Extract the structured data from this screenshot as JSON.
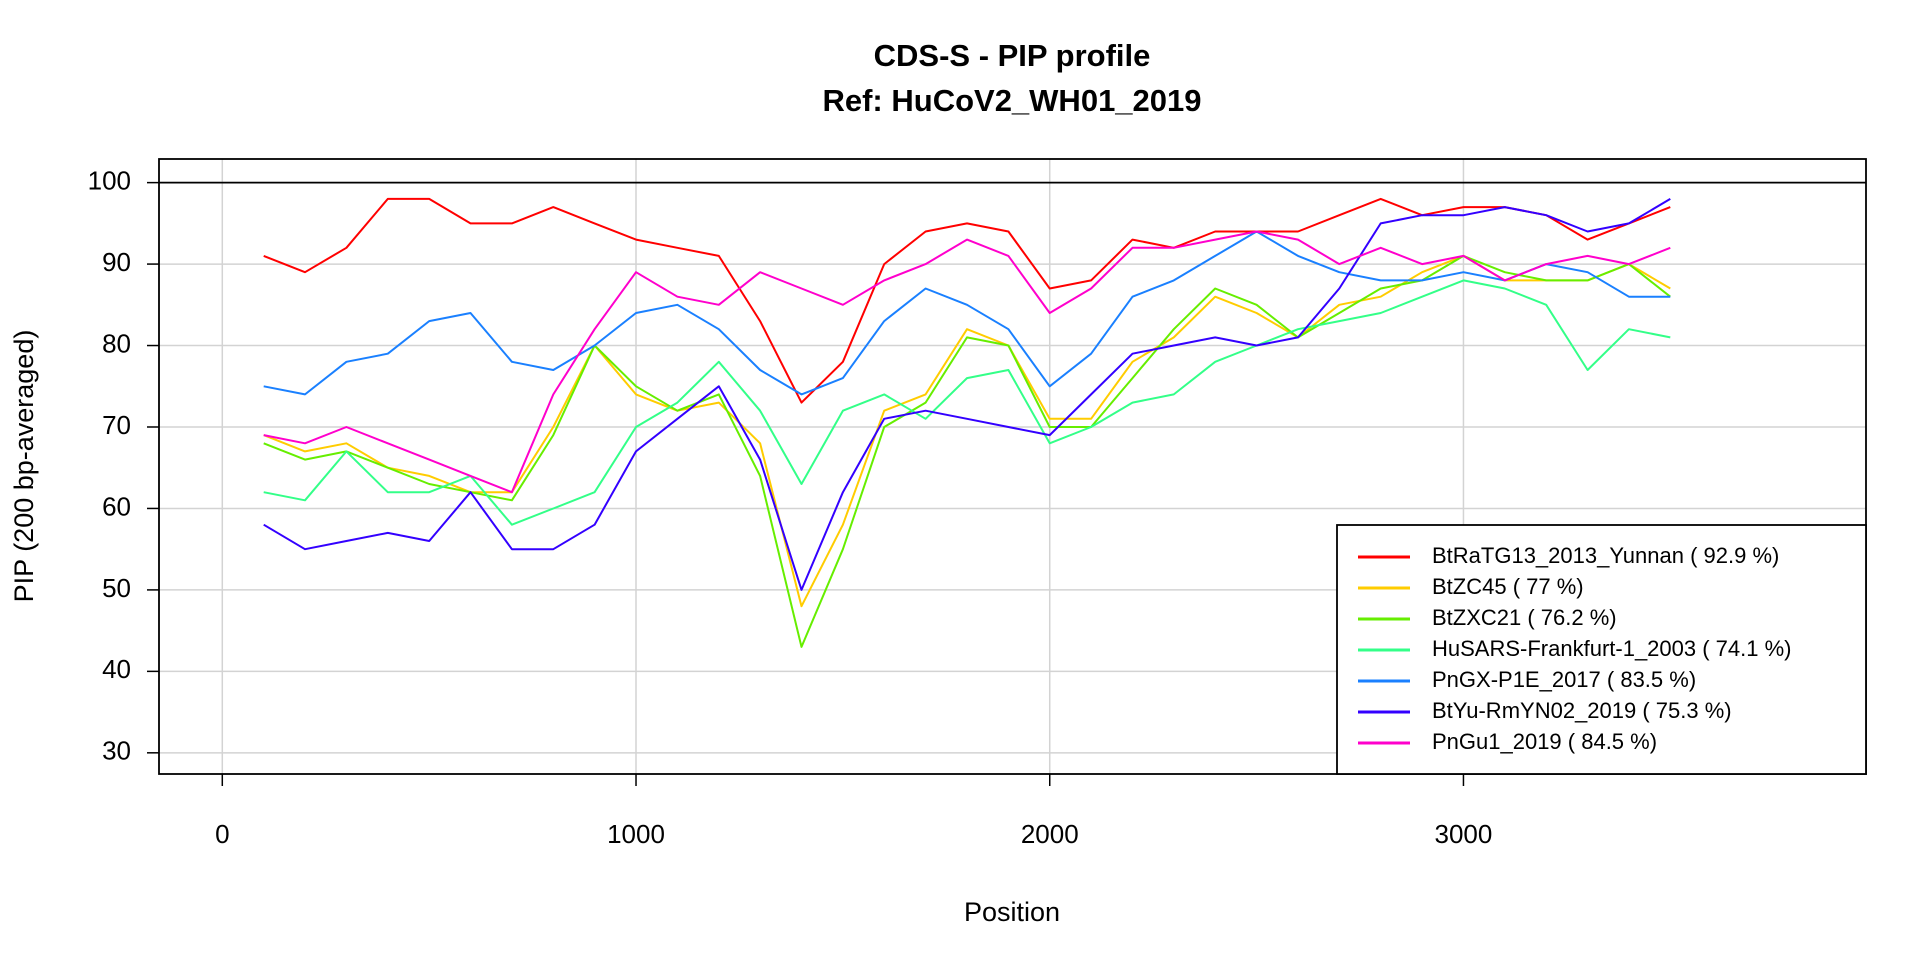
{
  "chart_data": {
    "type": "line",
    "title": "CDS-S - PIP profile",
    "subtitle": "Ref: HuCoV2_WH01_2019",
    "x_label": "Position",
    "y_label": "PIP (200 bp-averaged)",
    "x": [
      100,
      200,
      300,
      400,
      500,
      600,
      700,
      800,
      900,
      1000,
      1100,
      1200,
      1300,
      1400,
      1500,
      1600,
      1700,
      1800,
      1900,
      2000,
      2100,
      2200,
      2300,
      2400,
      2500,
      2600,
      2700,
      2800,
      2900,
      3000,
      3100,
      3200,
      3300,
      3400,
      3500
    ],
    "xlim": [
      -153,
      3973
    ],
    "xticks": [
      0,
      1000,
      2000,
      3000
    ],
    "ylim": [
      27.4,
      102.9
    ],
    "yticks": [
      30,
      40,
      50,
      60,
      70,
      80,
      90,
      100
    ],
    "hline": 100,
    "grid": true,
    "legend": "bottomright",
    "series": [
      {
        "name": "BtRaTG13_2013_Yunnan ( 92.9 %)",
        "color": "#ff0000",
        "values": [
          91,
          89,
          92,
          98,
          98,
          95,
          95,
          97,
          95,
          93,
          92,
          91,
          83,
          73,
          78,
          90,
          94,
          95,
          94,
          87,
          88,
          93,
          92,
          94,
          94,
          94,
          96,
          98,
          96,
          97,
          97,
          96,
          93,
          95,
          97
        ]
      },
      {
        "name": "BtZC45 ( 77 %)",
        "color": "#ffcc00",
        "values": [
          69,
          67,
          68,
          65,
          64,
          62,
          62,
          70,
          80,
          74,
          72,
          73,
          68,
          48,
          58,
          72,
          74,
          82,
          80,
          71,
          71,
          78,
          81,
          86,
          84,
          81,
          85,
          86,
          89,
          91,
          88,
          88,
          88,
          90,
          87
        ]
      },
      {
        "name": "BtZXC21 ( 76.2 %)",
        "color": "#66ee00",
        "values": [
          68,
          66,
          67,
          65,
          63,
          62,
          61,
          69,
          80,
          75,
          72,
          74,
          64,
          43,
          55,
          70,
          73,
          81,
          80,
          70,
          70,
          76,
          82,
          87,
          85,
          81,
          84,
          87,
          88,
          91,
          89,
          88,
          88,
          90,
          86
        ]
      },
      {
        "name": "HuSARS-Frankfurt-1_2003 ( 74.1 %)",
        "color": "#33ff88",
        "values": [
          62,
          61,
          67,
          62,
          62,
          64,
          58,
          60,
          62,
          70,
          73,
          78,
          72,
          63,
          72,
          74,
          71,
          76,
          77,
          68,
          70,
          73,
          74,
          78,
          80,
          82,
          83,
          84,
          86,
          88,
          87,
          85,
          77,
          82,
          81
        ]
      },
      {
        "name": "PnGX-P1E_2017 ( 83.5 %)",
        "color": "#1a80ff",
        "values": [
          75,
          74,
          78,
          79,
          83,
          84,
          78,
          77,
          80,
          84,
          85,
          82,
          77,
          74,
          76,
          83,
          87,
          85,
          82,
          75,
          79,
          86,
          88,
          91,
          94,
          91,
          89,
          88,
          88,
          89,
          88,
          90,
          89,
          86,
          86
        ]
      },
      {
        "name": "BtYu-RmYN02_2019 ( 75.3 %)",
        "color": "#3300ff",
        "values": [
          58,
          55,
          56,
          57,
          56,
          62,
          55,
          55,
          58,
          67,
          71,
          75,
          66,
          50,
          62,
          71,
          72,
          71,
          70,
          69,
          74,
          79,
          80,
          81,
          80,
          81,
          87,
          95,
          96,
          96,
          97,
          96,
          94,
          95,
          98
        ]
      },
      {
        "name": "PnGu1_2019 ( 84.5 %)",
        "color": "#ff00cc",
        "values": [
          69,
          68,
          70,
          68,
          66,
          64,
          62,
          74,
          82,
          89,
          86,
          85,
          89,
          87,
          85,
          88,
          90,
          93,
          91,
          84,
          87,
          92,
          92,
          93,
          94,
          93,
          90,
          92,
          90,
          91,
          88,
          90,
          91,
          90,
          92
        ]
      }
    ]
  }
}
